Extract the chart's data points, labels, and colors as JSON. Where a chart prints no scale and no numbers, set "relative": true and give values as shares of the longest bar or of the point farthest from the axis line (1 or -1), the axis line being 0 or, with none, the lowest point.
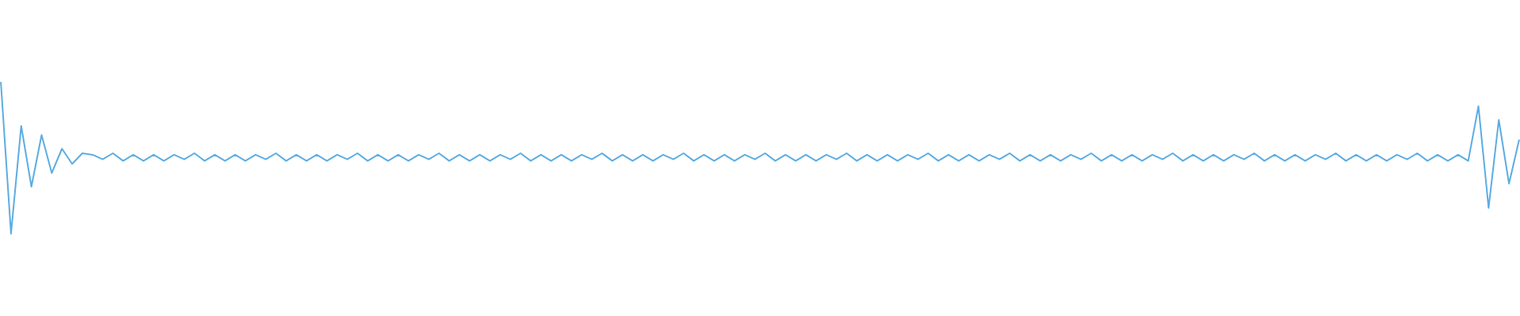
{
  "chart_data": {
    "type": "line",
    "relative": true,
    "color": "#5dade2",
    "categories": [
      null,
      null,
      null,
      null,
      null,
      null,
      null,
      null,
      null,
      null,
      null,
      null,
      null,
      null,
      null,
      null,
      null,
      null,
      null,
      null,
      null,
      null,
      null,
      null,
      null,
      null,
      null,
      null,
      null,
      null,
      null,
      null,
      null,
      null,
      null,
      null,
      null,
      null,
      null,
      null,
      null,
      null,
      null,
      null,
      null,
      null,
      null,
      null,
      null,
      null,
      null,
      null,
      null,
      null,
      null,
      null,
      null,
      null,
      null,
      null,
      null,
      null,
      null,
      null,
      null,
      null,
      null,
      null,
      null,
      null,
      null,
      null,
      null,
      null,
      null,
      null,
      null,
      null,
      null,
      null,
      null,
      null,
      null,
      null,
      null,
      null,
      null,
      null,
      null,
      null,
      null,
      null,
      null,
      null,
      null,
      null,
      null,
      null,
      null,
      null,
      null,
      null,
      null,
      null,
      null,
      null,
      null,
      null,
      null,
      null,
      null,
      null,
      null,
      null,
      null,
      null,
      null,
      null,
      null,
      null,
      null,
      null,
      null,
      null,
      null,
      null,
      null,
      null,
      null,
      null,
      null,
      null,
      null,
      null,
      null,
      null,
      null,
      null,
      null,
      null,
      null,
      null,
      null,
      null,
      null,
      null,
      null,
      null,
      null,
      null
    ],
    "values": [
      1,
      0,
      0.71,
      0.31,
      0.65,
      0.4,
      0.56,
      0.46,
      0.53,
      0.52,
      0.49,
      0.53,
      0.48,
      0.52,
      0.48,
      0.52,
      0.48,
      0.52,
      0.49,
      0.53,
      0.48,
      0.52,
      0.48,
      0.52,
      0.48,
      0.52,
      0.49,
      0.53,
      0.48,
      0.52,
      0.48,
      0.52,
      0.48,
      0.52,
      0.49,
      0.53,
      0.48,
      0.52,
      0.48,
      0.52,
      0.48,
      0.52,
      0.49,
      0.53,
      0.48,
      0.52,
      0.48,
      0.52,
      0.48,
      0.52,
      0.49,
      0.53,
      0.48,
      0.52,
      0.48,
      0.52,
      0.48,
      0.52,
      0.49,
      0.53,
      0.48,
      0.52,
      0.48,
      0.52,
      0.48,
      0.52,
      0.49,
      0.53,
      0.48,
      0.52,
      0.48,
      0.52,
      0.48,
      0.52,
      0.49,
      0.53,
      0.48,
      0.52,
      0.48,
      0.52,
      0.48,
      0.52,
      0.49,
      0.53,
      0.48,
      0.52,
      0.48,
      0.52,
      0.48,
      0.52,
      0.49,
      0.53,
      0.48,
      0.52,
      0.48,
      0.52,
      0.48,
      0.52,
      0.49,
      0.53,
      0.48,
      0.52,
      0.48,
      0.52,
      0.48,
      0.52,
      0.49,
      0.53,
      0.48,
      0.52,
      0.48,
      0.52,
      0.48,
      0.52,
      0.49,
      0.53,
      0.48,
      0.52,
      0.48,
      0.52,
      0.48,
      0.52,
      0.49,
      0.53,
      0.48,
      0.52,
      0.48,
      0.52,
      0.48,
      0.52,
      0.49,
      0.53,
      0.48,
      0.52,
      0.48,
      0.52,
      0.48,
      0.52,
      0.49,
      0.53,
      0.48,
      0.52,
      0.48,
      0.52,
      0.48,
      0.84,
      0.17,
      0.75,
      0.33,
      0.62
    ]
  }
}
